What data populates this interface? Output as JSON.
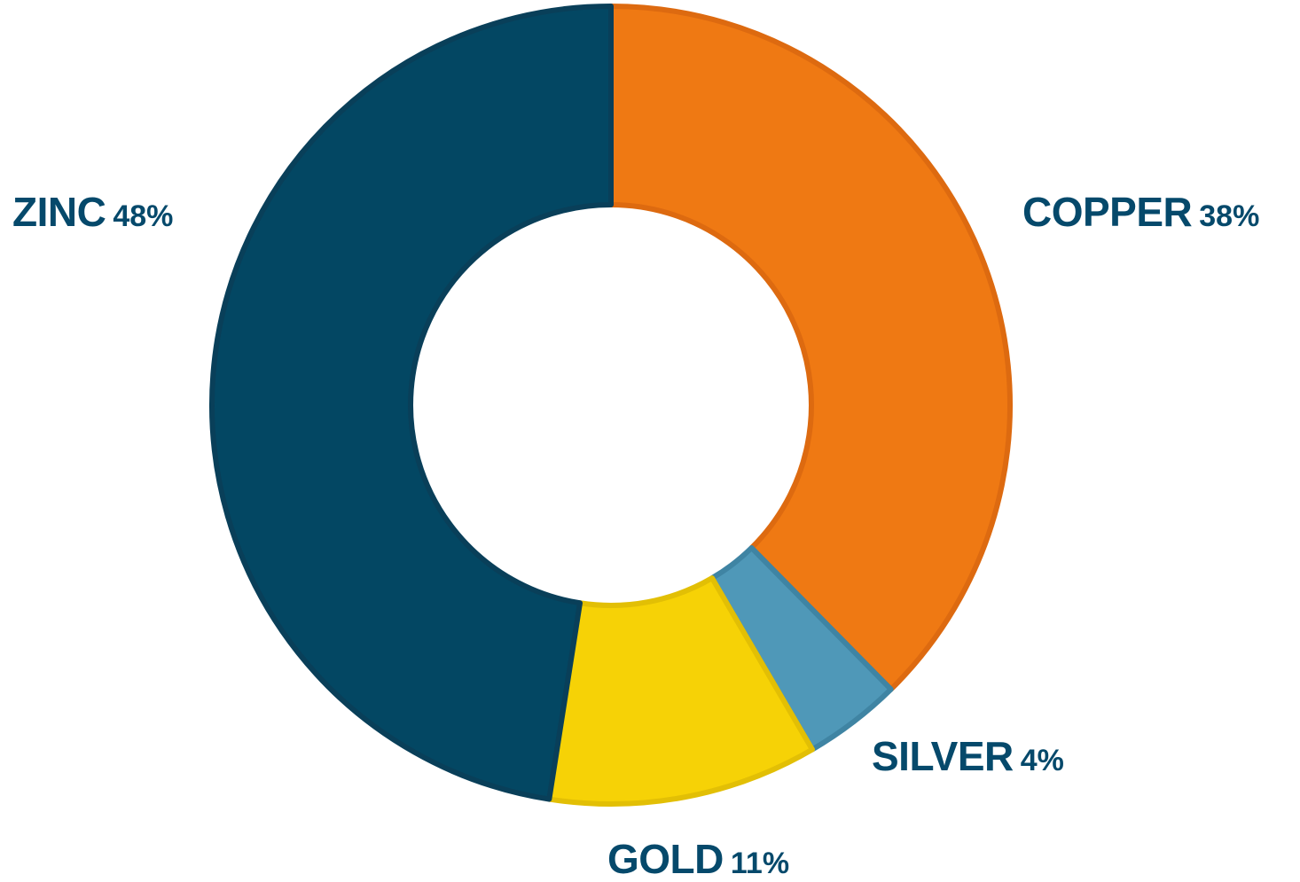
{
  "chart_data": {
    "type": "pie",
    "donut": true,
    "title": "",
    "series": [
      {
        "values": [
          {
            "label": "COPPER",
            "value": 38,
            "percent_label": "38%",
            "color": "#ef7913",
            "stroke": "#dd6a10"
          },
          {
            "label": "SILVER",
            "value": 4,
            "percent_label": "4%",
            "color": "#4f98b8",
            "stroke": "#3f84a3"
          },
          {
            "label": "GOLD",
            "value": 11,
            "percent_label": "11%",
            "color": "#f6d206",
            "stroke": "#e2bf05"
          },
          {
            "label": "ZINC",
            "value": 48,
            "percent_label": "48%",
            "color": "#034763",
            "stroke": "#093f59"
          }
        ]
      }
    ],
    "start_angle_deg": 0,
    "direction": "clockwise",
    "legend": "none",
    "label_color": "#05496b"
  }
}
